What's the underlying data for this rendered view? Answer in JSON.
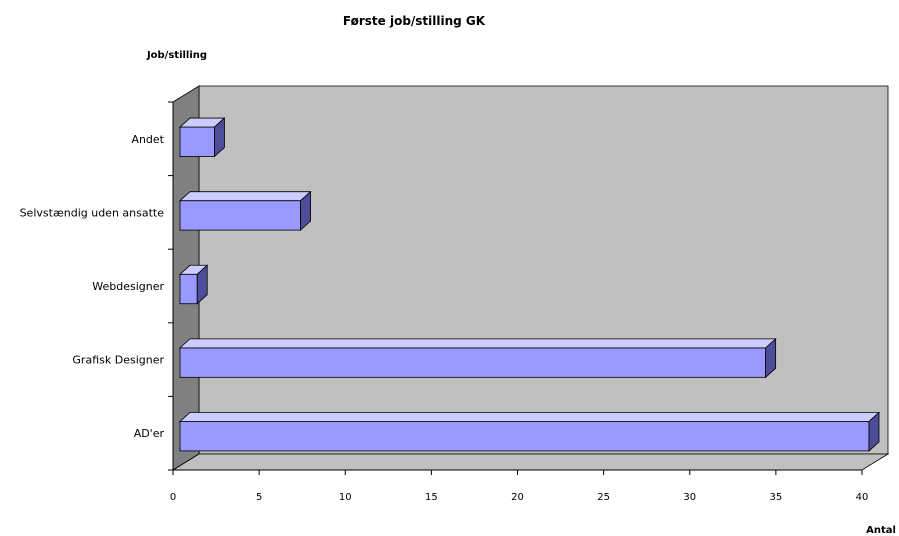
{
  "chart_data": {
    "type": "bar",
    "orientation": "horizontal",
    "style": "3d",
    "title": "Første job/stilling GK",
    "ylabel": "Job/stilling",
    "xlabel": "Antal",
    "categories": [
      "AD'er",
      "Grafisk Designer",
      "Webdesigner",
      "Selvstændig uden ansatte",
      "Andet"
    ],
    "values": [
      40,
      34,
      1,
      7,
      2
    ],
    "xlim": [
      0,
      40
    ],
    "xticks": [
      "0",
      "5",
      "10",
      "15",
      "20",
      "25",
      "30",
      "35",
      "40"
    ],
    "grid": false,
    "legend": "none",
    "colors": {
      "bar_front": "#9999ff",
      "bar_top": "#ccccff",
      "bar_side": "#4d4d99",
      "back_wall": "#c0c0c0",
      "side_wall": "#808080",
      "floor": "#c0c0c0"
    }
  }
}
